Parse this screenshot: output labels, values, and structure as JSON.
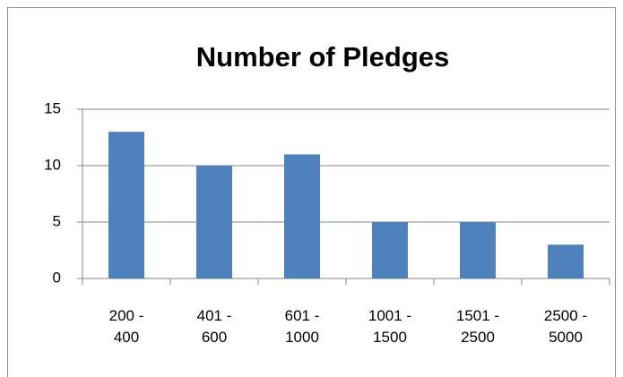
{
  "chart_data": {
    "type": "bar",
    "title": "Number of Pledges",
    "categories": [
      "200 - 400",
      "401 - 600",
      "601 - 1000",
      "1001 - 1500",
      "1501 - 2500",
      "2500 - 5000"
    ],
    "values": [
      13,
      10,
      11,
      5,
      5,
      3
    ],
    "color": "#4f81bd",
    "ylim": [
      0,
      15
    ],
    "yticks": [
      0,
      5,
      10,
      15
    ],
    "grid": true
  }
}
